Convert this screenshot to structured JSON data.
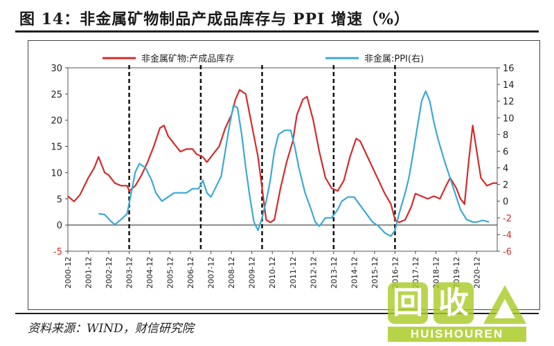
{
  "title": "图 14：非金属矿物制品产成品库存与 PPI 增速（%）",
  "source": "资料来源：WIND，财信研究院",
  "watermark": {
    "chars": [
      "回",
      "收"
    ],
    "text": "HUISHOUREN"
  },
  "chart_data": {
    "type": "line",
    "legend_position": "top",
    "grid": false,
    "x_tick_labels": [
      "2000-12",
      "2001-12",
      "2002-12",
      "2003-12",
      "2004-12",
      "2005-12",
      "2006-12",
      "2007-12",
      "2008-12",
      "2009-12",
      "2010-12",
      "2011-12",
      "2012-12",
      "2013-12",
      "2014-12",
      "2015-12",
      "2016-12",
      "2017-12",
      "2018-12",
      "2019-12",
      "2020-12"
    ],
    "y_left": {
      "min": -5,
      "max": 30,
      "ticks": [
        "-5",
        "0",
        "5",
        "10",
        "15",
        "20",
        "25",
        "30"
      ]
    },
    "y_right": {
      "min": -6,
      "max": 16,
      "ticks": [
        "-6",
        "-4",
        "-2",
        "0",
        "2",
        "4",
        "6",
        "8",
        "10",
        "12",
        "14",
        "16"
      ]
    },
    "vlines_dashed": [
      2003.0,
      2006.5,
      2009.5,
      2013.0,
      2016.0
    ],
    "series": [
      {
        "name": "非金属矿物:产成品库存",
        "axis": "left",
        "color": "#d42a2a",
        "points": [
          [
            2000.0,
            5.5
          ],
          [
            2000.3,
            4.5
          ],
          [
            2000.6,
            5.8
          ],
          [
            2001.0,
            9.0
          ],
          [
            2001.3,
            11.0
          ],
          [
            2001.5,
            13.0
          ],
          [
            2001.8,
            10.0
          ],
          [
            2002.0,
            9.5
          ],
          [
            2002.3,
            8.0
          ],
          [
            2002.6,
            7.5
          ],
          [
            2002.9,
            7.5
          ],
          [
            2003.0,
            6.5
          ],
          [
            2003.3,
            7.5
          ],
          [
            2003.6,
            9.5
          ],
          [
            2003.9,
            12.0
          ],
          [
            2004.2,
            15.0
          ],
          [
            2004.5,
            18.5
          ],
          [
            2004.7,
            19.0
          ],
          [
            2004.9,
            17.0
          ],
          [
            2005.2,
            15.5
          ],
          [
            2005.5,
            14.0
          ],
          [
            2005.8,
            14.5
          ],
          [
            2006.1,
            14.5
          ],
          [
            2006.3,
            13.5
          ],
          [
            2006.6,
            13.0
          ],
          [
            2006.8,
            12.0
          ],
          [
            2007.1,
            13.5
          ],
          [
            2007.4,
            15.0
          ],
          [
            2007.7,
            18.5
          ],
          [
            2008.0,
            21.0
          ],
          [
            2008.2,
            24.0
          ],
          [
            2008.4,
            25.8
          ],
          [
            2008.7,
            25.0
          ],
          [
            2009.0,
            19.0
          ],
          [
            2009.3,
            13.0
          ],
          [
            2009.5,
            7.0
          ],
          [
            2009.7,
            1.0
          ],
          [
            2009.9,
            0.5
          ],
          [
            2010.1,
            1.0
          ],
          [
            2010.4,
            7.0
          ],
          [
            2010.7,
            12.0
          ],
          [
            2011.0,
            16.0
          ],
          [
            2011.2,
            21.0
          ],
          [
            2011.5,
            24.0
          ],
          [
            2011.7,
            24.5
          ],
          [
            2012.0,
            20.0
          ],
          [
            2012.3,
            14.0
          ],
          [
            2012.6,
            9.0
          ],
          [
            2012.9,
            7.0
          ],
          [
            2013.2,
            6.5
          ],
          [
            2013.5,
            8.5
          ],
          [
            2013.8,
            13.0
          ],
          [
            2014.1,
            16.5
          ],
          [
            2014.3,
            16.0
          ],
          [
            2014.6,
            13.5
          ],
          [
            2014.9,
            11.0
          ],
          [
            2015.2,
            8.5
          ],
          [
            2015.5,
            6.0
          ],
          [
            2015.8,
            4.0
          ],
          [
            2016.0,
            1.0
          ],
          [
            2016.2,
            0.5
          ],
          [
            2016.5,
            1.0
          ],
          [
            2016.8,
            3.5
          ],
          [
            2017.0,
            6.0
          ],
          [
            2017.3,
            5.5
          ],
          [
            2017.6,
            5.0
          ],
          [
            2017.9,
            5.5
          ],
          [
            2018.2,
            5.0
          ],
          [
            2018.5,
            7.5
          ],
          [
            2018.7,
            9.0
          ],
          [
            2019.0,
            7.0
          ],
          [
            2019.2,
            5.0
          ],
          [
            2019.4,
            4.0
          ],
          [
            2019.6,
            12.0
          ],
          [
            2019.8,
            19.0
          ],
          [
            2020.0,
            14.0
          ],
          [
            2020.2,
            9.0
          ],
          [
            2020.5,
            7.5
          ],
          [
            2020.8,
            8.0
          ],
          [
            2021.0,
            8.0
          ]
        ]
      },
      {
        "name": "非金属:PPI(右)",
        "axis": "right",
        "color": "#3aa9d4",
        "points": [
          [
            2001.5,
            -1.5
          ],
          [
            2001.8,
            -1.6
          ],
          [
            2002.1,
            -2.4
          ],
          [
            2002.3,
            -2.8
          ],
          [
            2002.6,
            -2.2
          ],
          [
            2002.9,
            -1.5
          ],
          [
            2003.1,
            1.0
          ],
          [
            2003.3,
            3.5
          ],
          [
            2003.5,
            4.5
          ],
          [
            2003.8,
            4.0
          ],
          [
            2004.1,
            2.5
          ],
          [
            2004.3,
            1.0
          ],
          [
            2004.6,
            0.0
          ],
          [
            2004.9,
            0.5
          ],
          [
            2005.2,
            1.0
          ],
          [
            2005.5,
            1.0
          ],
          [
            2005.8,
            1.0
          ],
          [
            2006.1,
            1.5
          ],
          [
            2006.4,
            1.5
          ],
          [
            2006.6,
            2.5
          ],
          [
            2006.8,
            1.0
          ],
          [
            2007.0,
            0.5
          ],
          [
            2007.2,
            1.5
          ],
          [
            2007.5,
            3.0
          ],
          [
            2007.7,
            6.0
          ],
          [
            2007.9,
            9.0
          ],
          [
            2008.1,
            11.5
          ],
          [
            2008.3,
            11.2
          ],
          [
            2008.5,
            8.0
          ],
          [
            2008.7,
            4.0
          ],
          [
            2008.9,
            0.5
          ],
          [
            2009.1,
            -2.5
          ],
          [
            2009.3,
            -3.5
          ],
          [
            2009.5,
            -2.0
          ],
          [
            2009.7,
            0.0
          ],
          [
            2009.9,
            2.5
          ],
          [
            2010.1,
            6.0
          ],
          [
            2010.3,
            8.0
          ],
          [
            2010.6,
            8.5
          ],
          [
            2010.9,
            8.5
          ],
          [
            2011.1,
            6.5
          ],
          [
            2011.3,
            4.0
          ],
          [
            2011.6,
            1.0
          ],
          [
            2011.9,
            -1.0
          ],
          [
            2012.1,
            -2.5
          ],
          [
            2012.3,
            -3.0
          ],
          [
            2012.6,
            -2.0
          ],
          [
            2012.9,
            -2.0
          ],
          [
            2013.2,
            -1.0
          ],
          [
            2013.4,
            0.0
          ],
          [
            2013.7,
            0.5
          ],
          [
            2014.0,
            0.5
          ],
          [
            2014.3,
            -0.5
          ],
          [
            2014.6,
            -1.5
          ],
          [
            2014.9,
            -2.5
          ],
          [
            2015.2,
            -3.0
          ],
          [
            2015.5,
            -3.8
          ],
          [
            2015.8,
            -4.2
          ],
          [
            2016.0,
            -3.5
          ],
          [
            2016.2,
            -1.5
          ],
          [
            2016.5,
            1.0
          ],
          [
            2016.7,
            3.0
          ],
          [
            2016.9,
            6.0
          ],
          [
            2017.1,
            9.0
          ],
          [
            2017.3,
            12.0
          ],
          [
            2017.5,
            13.2
          ],
          [
            2017.7,
            12.0
          ],
          [
            2017.9,
            9.5
          ],
          [
            2018.1,
            7.5
          ],
          [
            2018.4,
            5.0
          ],
          [
            2018.6,
            3.5
          ],
          [
            2018.8,
            2.0
          ],
          [
            2019.0,
            0.5
          ],
          [
            2019.2,
            -1.0
          ],
          [
            2019.5,
            -2.2
          ],
          [
            2019.8,
            -2.5
          ],
          [
            2020.0,
            -2.5
          ],
          [
            2020.3,
            -2.3
          ],
          [
            2020.6,
            -2.5
          ]
        ]
      }
    ]
  }
}
